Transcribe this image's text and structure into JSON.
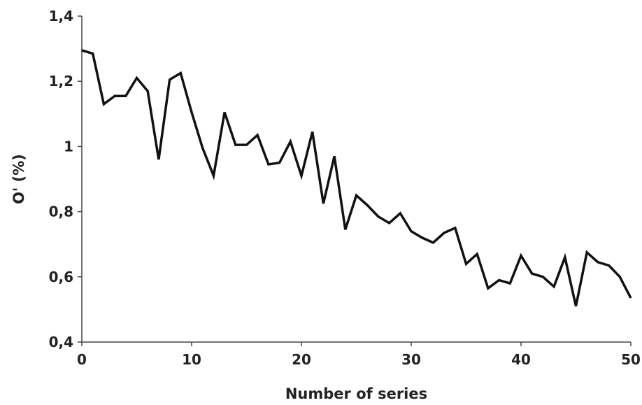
{
  "chart_data": {
    "type": "line",
    "xlabel": "Number of series",
    "ylabel": "O' (%)",
    "xlim": [
      0,
      50
    ],
    "ylim": [
      0.4,
      1.4
    ],
    "xticks": [
      0,
      10,
      20,
      30,
      40,
      50
    ],
    "xtick_labels": [
      "0",
      "10",
      "20",
      "30",
      "40",
      "50"
    ],
    "yticks": [
      0.4,
      0.6,
      0.8,
      1.0,
      1.2,
      1.4
    ],
    "ytick_labels": [
      "0,4",
      "0,6",
      "0,8",
      "1",
      "1,2",
      "1,4"
    ],
    "grid": false,
    "legend": "none",
    "line_color": "#111111",
    "series": [
      {
        "x": [
          0,
          1,
          2,
          3,
          4,
          5,
          6,
          7,
          8,
          9,
          10,
          11,
          12,
          13,
          14,
          15,
          16,
          17,
          18,
          19,
          20,
          21,
          22,
          23,
          24,
          25,
          26,
          27,
          28,
          29,
          30,
          31,
          32,
          33,
          34,
          35,
          36,
          37,
          38,
          39,
          40,
          41,
          42,
          43,
          44,
          45,
          46,
          47,
          48,
          49,
          50
        ],
        "values": [
          1.295,
          1.285,
          1.13,
          1.155,
          1.155,
          1.21,
          1.17,
          0.96,
          1.205,
          1.225,
          1.105,
          0.995,
          0.91,
          1.105,
          1.005,
          1.005,
          1.035,
          0.945,
          0.95,
          1.015,
          0.91,
          1.045,
          0.825,
          0.97,
          0.745,
          0.85,
          0.82,
          0.785,
          0.765,
          0.795,
          0.74,
          0.72,
          0.705,
          0.735,
          0.75,
          0.64,
          0.67,
          0.565,
          0.59,
          0.58,
          0.665,
          0.61,
          0.6,
          0.57,
          0.66,
          0.51,
          0.675,
          0.645,
          0.635,
          0.6,
          0.535
        ]
      }
    ]
  }
}
